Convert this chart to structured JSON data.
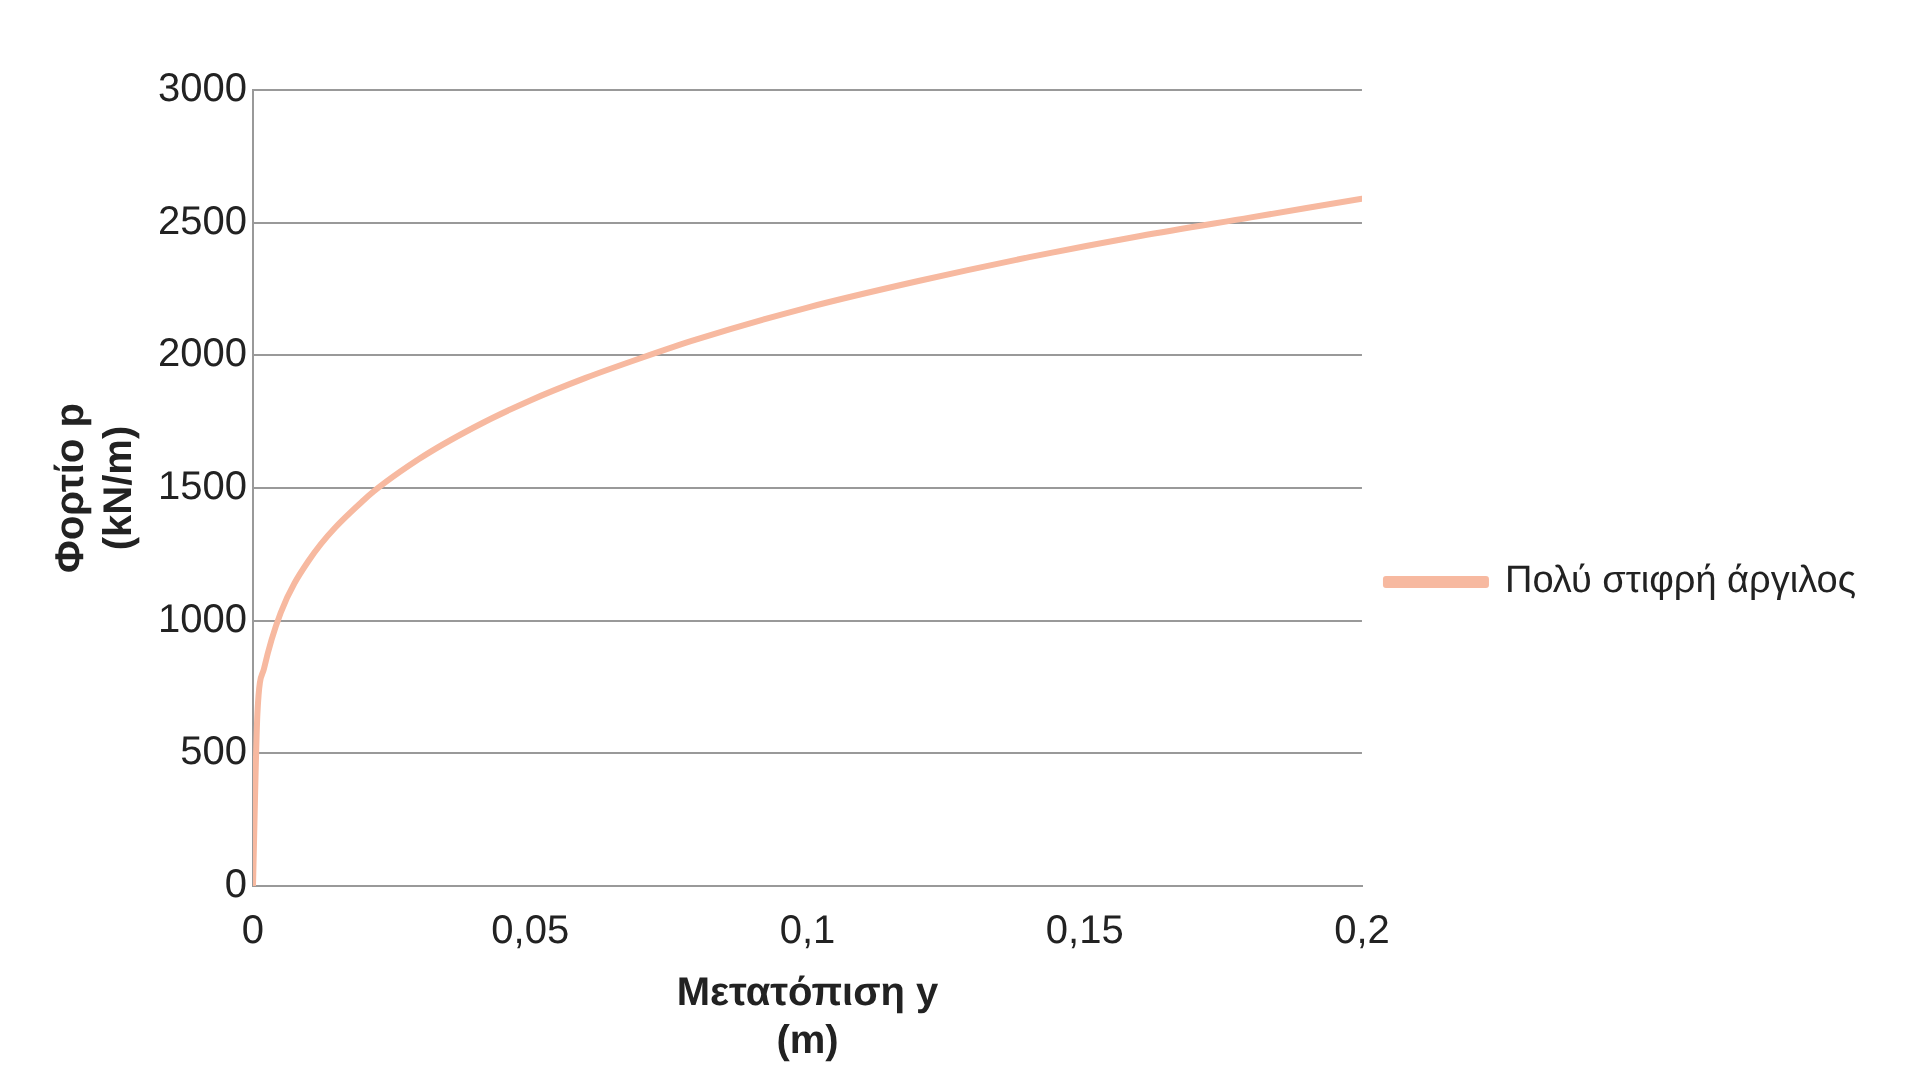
{
  "chart_data": {
    "type": "line",
    "xlabel": "Μετατόπιση y\n(m)",
    "ylabel": "Φορτίο p\n(kN/m)",
    "x": [
      0,
      0.0008,
      0.002,
      0.005,
      0.01,
      0.02,
      0.03,
      0.04,
      0.05,
      0.06,
      0.07,
      0.08,
      0.1,
      0.12,
      0.14,
      0.16,
      0.18,
      0.2
    ],
    "series": [
      {
        "name": "Πολύ στιφρή άργιλος",
        "color": "#f7b9a0",
        "values": [
          0,
          650,
          820,
          1030,
          1225,
          1455,
          1610,
          1730,
          1830,
          1915,
          1990,
          2060,
          2180,
          2280,
          2370,
          2450,
          2520,
          2590
        ]
      }
    ],
    "xlim": [
      0,
      0.2
    ],
    "xticks": [
      0,
      {
        "value": 0.05,
        "label": "0,05"
      },
      {
        "value": 0.1,
        "label": "0,1"
      },
      {
        "value": 0.15,
        "label": "0,15"
      },
      {
        "value": 0.2,
        "label": "0,2"
      }
    ],
    "ylim": [
      0,
      3000
    ],
    "yticks": [
      0,
      500,
      1000,
      1500,
      2000,
      2500,
      3000
    ],
    "grid": "y",
    "legend": "right",
    "marker": "none",
    "line_style": "solid"
  }
}
